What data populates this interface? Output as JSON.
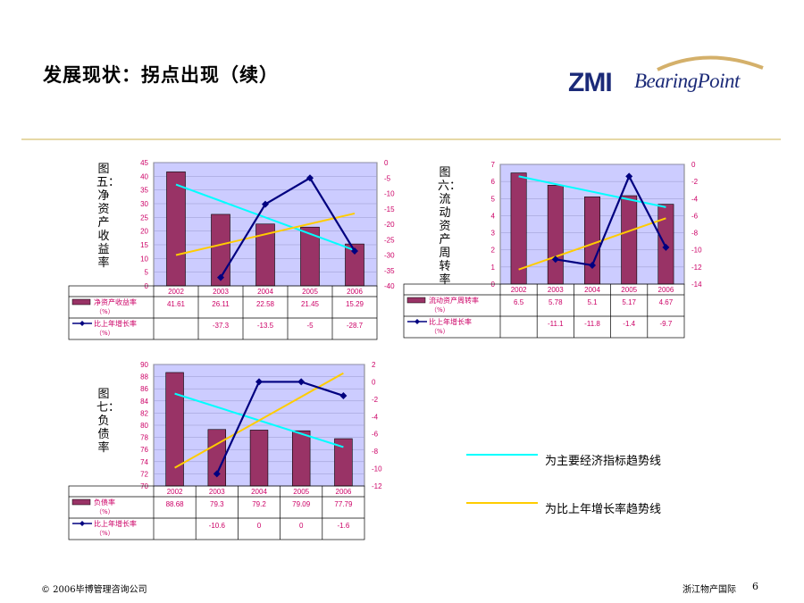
{
  "slide": {
    "title": "发展现状：拐点出现（续）",
    "logo_zmi": "ZMI",
    "logo_bearingpoint": "BearingPoint",
    "legend_cyan": "为主要经济指标趋势线",
    "legend_yellow": "为比上年增长率趋势线",
    "footer_left": "© 2006毕博管理咨询公司",
    "footer_right": "浙江物产国际",
    "page_number": "6",
    "colors": {
      "bar": "#993366",
      "line": "#000080",
      "plot_bg": "#ccccff",
      "trend_main": "#00ffff",
      "trend_growth": "#ffcc00",
      "axis_right_text": "#cc0066",
      "rule": "#e6d8a6"
    }
  },
  "chart_data": [
    {
      "type": "bar",
      "figure_label": "图五：净资产收益率",
      "categories": [
        "2002",
        "2003",
        "2004",
        "2005",
        "2006"
      ],
      "series": [
        {
          "name": "净资产收益率（%）",
          "type": "bar",
          "values": [
            41.61,
            26.11,
            22.58,
            21.45,
            15.29
          ],
          "labels": [
            "41.61",
            "26.11",
            "22.58",
            "21.45",
            "15.29"
          ]
        },
        {
          "name": "比上年增长率（%）",
          "type": "line",
          "values": [
            null,
            -37.3,
            -13.5,
            -5,
            -28.7
          ],
          "labels": [
            "",
            "-37.3",
            "-13.5",
            "-5",
            "-28.7"
          ]
        }
      ],
      "ylim": [
        0,
        45
      ],
      "yticks": [
        "0",
        "5",
        "10",
        "15",
        "20",
        "25",
        "30",
        "35",
        "40",
        "45"
      ],
      "y2lim": [
        -40,
        0
      ],
      "y2ticks": [
        "-40",
        "-35",
        "-30",
        "-25",
        "-20",
        "-15",
        "-10",
        "-5",
        "0"
      ],
      "trend_main": [
        37,
        13
      ],
      "trend_growth": [
        -30,
        -16.5
      ]
    },
    {
      "type": "bar",
      "figure_label": "图六：流动资产周转率",
      "categories": [
        "2002",
        "2003",
        "2004",
        "2005",
        "2006"
      ],
      "series": [
        {
          "name": "流动资产周转率（%）",
          "type": "bar",
          "values": [
            6.5,
            5.78,
            5.1,
            5.17,
            4.67
          ],
          "labels": [
            "6.5",
            "5.78",
            "5.1",
            "5.17",
            "4.67"
          ]
        },
        {
          "name": "比上年增长率（%）",
          "type": "line",
          "values": [
            null,
            -11.1,
            -11.8,
            -1.4,
            -9.7
          ],
          "labels": [
            "",
            "-11.1",
            "-11.8",
            "-1.4",
            "-9.7"
          ]
        }
      ],
      "ylim": [
        0,
        7
      ],
      "yticks": [
        "0",
        "1",
        "2",
        "3",
        "4",
        "5",
        "6",
        "7"
      ],
      "y2lim": [
        -14,
        0
      ],
      "y2ticks": [
        "-14",
        "-12",
        "-10",
        "-8",
        "-6",
        "-4",
        "-2",
        "0"
      ],
      "trend_main": [
        6.3,
        4.5
      ],
      "trend_growth": [
        -12.3,
        -6.3
      ]
    },
    {
      "type": "bar",
      "figure_label": "图七：负债率",
      "categories": [
        "2002",
        "2003",
        "2004",
        "2005",
        "2006"
      ],
      "series": [
        {
          "name": "负债率（%）",
          "type": "bar",
          "values": [
            88.68,
            79.3,
            79.2,
            79.09,
            77.79
          ],
          "labels": [
            "88.68",
            "79.3",
            "79.2",
            "79.09",
            "77.79"
          ]
        },
        {
          "name": "比上年增长率（%）",
          "type": "line",
          "values": [
            null,
            -10.6,
            0,
            0,
            -1.6
          ],
          "labels": [
            "",
            "-10.6",
            "0",
            "0",
            "-1.6"
          ]
        }
      ],
      "ylim": [
        70,
        90
      ],
      "yticks": [
        "70",
        "72",
        "74",
        "76",
        "78",
        "80",
        "82",
        "84",
        "86",
        "88",
        "90"
      ],
      "y2lim": [
        -12,
        2
      ],
      "y2ticks": [
        "-12",
        "-10",
        "-8",
        "-6",
        "-4",
        "-2",
        "0",
        "2"
      ],
      "trend_main": [
        85.2,
        76.4
      ],
      "trend_growth": [
        -9.9,
        1
      ]
    }
  ]
}
